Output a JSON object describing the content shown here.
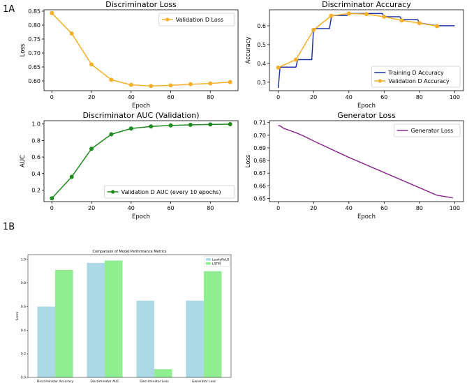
{
  "figure": {
    "panel_a_label": "1A",
    "panel_b_label": "1B"
  },
  "chart_data": [
    {
      "id": "d_loss",
      "type": "line",
      "title": "Discriminator Loss",
      "xlabel": "Epoch",
      "ylabel": "Loss",
      "xlim": [
        -4,
        94
      ],
      "ylim": [
        0.565,
        0.855
      ],
      "xticks": [
        0,
        20,
        40,
        60,
        80
      ],
      "yticks": [
        0.6,
        0.65,
        0.7,
        0.75,
        0.8,
        0.85
      ],
      "ytick_labels": [
        "0.60",
        "0.65",
        "0.70",
        "0.75",
        "0.80",
        "0.85"
      ],
      "legend_position": "upper-right",
      "series": [
        {
          "name": "Validation D Loss",
          "color": "#f5b02a",
          "marker": "circle",
          "x": [
            0,
            10,
            20,
            30,
            40,
            50,
            60,
            70,
            80,
            90
          ],
          "y": [
            0.843,
            0.77,
            0.659,
            0.604,
            0.586,
            0.582,
            0.584,
            0.588,
            0.591,
            0.596
          ]
        }
      ]
    },
    {
      "id": "d_acc",
      "type": "line",
      "title": "Discriminator Accuracy",
      "xlabel": "Epoch",
      "ylabel": "Accuracy",
      "xlim": [
        -5,
        105
      ],
      "ylim": [
        0.255,
        0.685
      ],
      "xticks": [
        0,
        20,
        40,
        60,
        80,
        100
      ],
      "yticks": [
        0.3,
        0.4,
        0.5,
        0.6
      ],
      "ytick_labels": [
        "0.3",
        "0.4",
        "0.5",
        "0.6"
      ],
      "legend_position": "lower-right",
      "series": [
        {
          "name": "Training D Accuracy",
          "color": "#2233aa",
          "marker": "none",
          "x": [
            0,
            1,
            10,
            11,
            19,
            20,
            29,
            30,
            31,
            39,
            40,
            59,
            60,
            69,
            70,
            79,
            80,
            90,
            100
          ],
          "y": [
            0.27,
            0.38,
            0.38,
            0.42,
            0.42,
            0.585,
            0.585,
            0.64,
            0.655,
            0.655,
            0.665,
            0.665,
            0.648,
            0.648,
            0.632,
            0.632,
            0.615,
            0.6,
            0.6
          ]
        },
        {
          "name": "Validation D Accuracy",
          "color": "#f5b02a",
          "marker": "circle",
          "x": [
            0,
            10,
            20,
            30,
            40,
            50,
            60,
            70,
            80,
            90
          ],
          "y": [
            0.378,
            0.42,
            0.578,
            0.653,
            0.665,
            0.662,
            0.648,
            0.628,
            0.614,
            0.598
          ]
        }
      ]
    },
    {
      "id": "d_auc",
      "type": "line",
      "title": "Discriminator AUC (Validation)",
      "xlabel": "Epoch",
      "ylabel": "AUC",
      "xlim": [
        -4,
        94
      ],
      "ylim": [
        0.06,
        1.04
      ],
      "xticks": [
        0,
        20,
        40,
        60,
        80
      ],
      "yticks": [
        0.2,
        0.4,
        0.6,
        0.8,
        1.0
      ],
      "ytick_labels": [
        "0.2",
        "0.4",
        "0.6",
        "0.8",
        "1.0"
      ],
      "legend_position": "lower-right",
      "series": [
        {
          "name": "Validation D AUC (every 10 epochs)",
          "color": "#1f8a1f",
          "marker": "circle",
          "x": [
            0,
            10,
            20,
            30,
            40,
            50,
            60,
            70,
            80,
            90
          ],
          "y": [
            0.1,
            0.36,
            0.7,
            0.875,
            0.945,
            0.97,
            0.983,
            0.99,
            0.995,
            0.998
          ]
        }
      ]
    },
    {
      "id": "g_loss",
      "type": "line",
      "title": "Generator Loss",
      "xlabel": "Epoch",
      "ylabel": "Loss",
      "xlim": [
        -5,
        105
      ],
      "ylim": [
        0.6475,
        0.7115
      ],
      "xticks": [
        0,
        20,
        40,
        60,
        80,
        100
      ],
      "yticks": [
        0.65,
        0.66,
        0.67,
        0.68,
        0.69,
        0.7,
        0.71
      ],
      "ytick_labels": [
        "0.65",
        "0.66",
        "0.67",
        "0.68",
        "0.69",
        "0.70",
        "0.71"
      ],
      "legend_position": "upper-right",
      "series": [
        {
          "name": "Generator Loss",
          "color": "#8b2a8f",
          "marker": "none",
          "x": [
            0,
            1,
            2,
            3,
            4,
            5,
            6,
            8,
            10,
            15,
            20,
            30,
            40,
            50,
            60,
            70,
            80,
            90,
            99
          ],
          "y": [
            0.7075,
            0.7075,
            0.7065,
            0.7055,
            0.705,
            0.7045,
            0.704,
            0.703,
            0.702,
            0.699,
            0.6955,
            0.689,
            0.6825,
            0.6765,
            0.6705,
            0.6645,
            0.6585,
            0.6525,
            0.6505
          ]
        }
      ]
    },
    {
      "id": "comparison",
      "type": "bar",
      "title": "Comparison of Model Performance Metrics",
      "xlabel": "",
      "ylabel": "Score",
      "ylim": [
        0,
        1.04
      ],
      "yticks": [
        0.0,
        0.2,
        0.4,
        0.6,
        0.8,
        1.0
      ],
      "ytick_labels": [
        "0.0",
        "0.2",
        "0.4",
        "0.6",
        "0.8",
        "1.0"
      ],
      "legend_position": "upper-right",
      "categories": [
        "Discriminator Accuracy",
        "Discriminator AUC",
        "Discriminator Loss",
        "Generator Loss"
      ],
      "series": [
        {
          "name": "LeakyReLU",
          "color": "#add8e6",
          "values": [
            0.6,
            0.97,
            0.65,
            0.65
          ]
        },
        {
          "name": "LSTM",
          "color": "#90ee90",
          "values": [
            0.91,
            0.99,
            0.07,
            0.9
          ]
        }
      ]
    }
  ]
}
